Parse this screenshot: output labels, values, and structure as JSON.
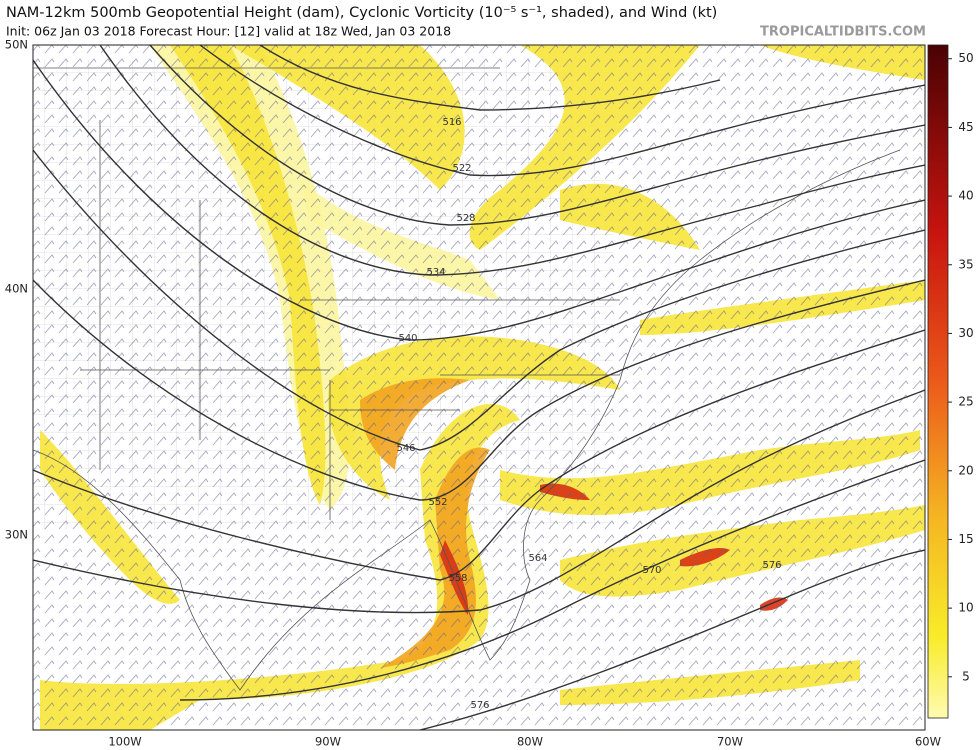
{
  "header": {
    "title": "NAM-12km 500mb Geopotential Height (dam), Cyclonic Vorticity (10⁻⁵ s⁻¹, shaded), and Wind (kt)",
    "subtitle": "Init: 06z Jan 03 2018   Forecast Hour: [12]   valid at 18z Wed, Jan 03 2018",
    "watermark": "TROPICALTIDBITS.COM"
  },
  "map": {
    "lat_labels": [
      "50N",
      "40N",
      "30N"
    ],
    "lon_labels": [
      "100W",
      "90W",
      "80W",
      "70W",
      "60W"
    ],
    "contour_labels": [
      "516",
      "522",
      "528",
      "534",
      "540",
      "546",
      "552",
      "558",
      "564",
      "570",
      "576",
      "576"
    ]
  },
  "colorbar": {
    "lim": [
      2,
      51
    ],
    "ticks": [
      5,
      10,
      15,
      20,
      25,
      30,
      35,
      40,
      45,
      50
    ]
  }
}
